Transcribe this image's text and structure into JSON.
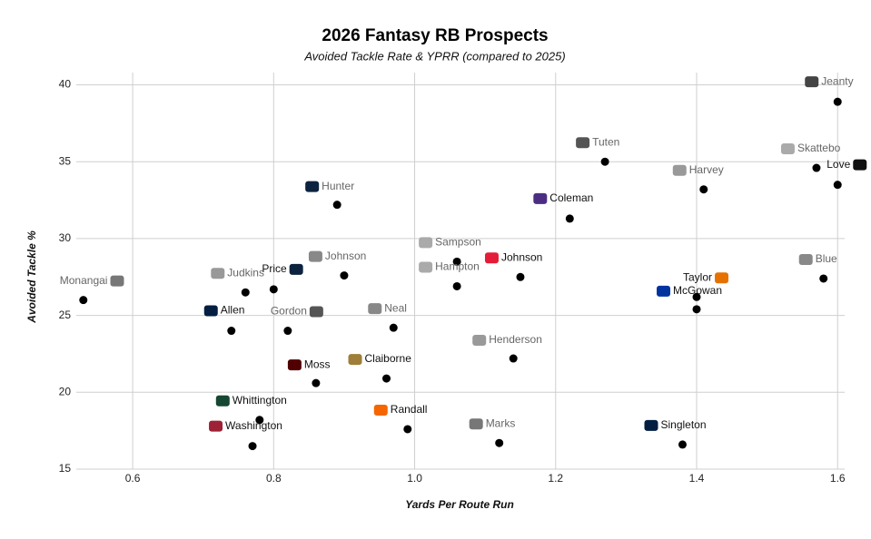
{
  "chart_data": {
    "type": "scatter",
    "title": "2026 Fantasy RB Prospects",
    "subtitle": "Avoided Tackle Rate & YPRR (compared to 2025)",
    "x_label": "Yards Per Route Run",
    "y_label": "Avoided Tackle %",
    "labels": [
      "Jeanty",
      "Love",
      "Skattebo",
      "Blue",
      "Tuten",
      "Harvey",
      "Coleman",
      "Taylor",
      "McGowan",
      "Singleton",
      "Marks",
      "Henderson",
      "Johnson",
      "Sampson",
      "Hampton",
      "Neal",
      "Claiborne",
      "Randall",
      "Hunter",
      "Johnson",
      "Price",
      "Gordon",
      "Moss",
      "Judkins",
      "Allen",
      "Whittington",
      "Washington",
      "Monangai"
    ],
    "x": [
      1.6,
      1.6,
      1.57,
      1.58,
      1.27,
      1.41,
      1.22,
      1.4,
      1.4,
      1.38,
      1.12,
      1.14,
      1.15,
      1.06,
      1.06,
      0.97,
      0.96,
      0.99,
      0.89,
      0.9,
      0.8,
      0.82,
      0.86,
      0.76,
      0.74,
      0.78,
      0.77,
      0.53
    ],
    "y": [
      38.9,
      33.5,
      34.6,
      27.4,
      35.0,
      33.2,
      31.3,
      26.2,
      25.4,
      16.6,
      16.7,
      22.2,
      27.5,
      28.5,
      26.9,
      24.2,
      20.9,
      17.6,
      32.2,
      27.6,
      26.7,
      24.0,
      20.6,
      26.5,
      24.0,
      18.2,
      16.5,
      26.0
    ],
    "label_colors": [
      "#666",
      "#111",
      "#666",
      "#666",
      "#666",
      "#666",
      "#111",
      "#111",
      "#111",
      "#111",
      "#666",
      "#666",
      "#111",
      "#666",
      "#666",
      "#666",
      "#111",
      "#111",
      "#666",
      "#666",
      "#111",
      "#666",
      "#111",
      "#666",
      "#111",
      "#111",
      "#111",
      "#666"
    ],
    "point_color": "#000000",
    "xlim": [
      0.52,
      1.61
    ],
    "ylim": [
      15,
      40.8
    ],
    "xticks": [
      0.6,
      0.8,
      {
        "value": 1,
        "label": "1.0"
      },
      1.2,
      1.4,
      1.6
    ],
    "yticks": [
      15,
      20,
      25,
      30,
      35,
      40
    ],
    "grid": true
  }
}
